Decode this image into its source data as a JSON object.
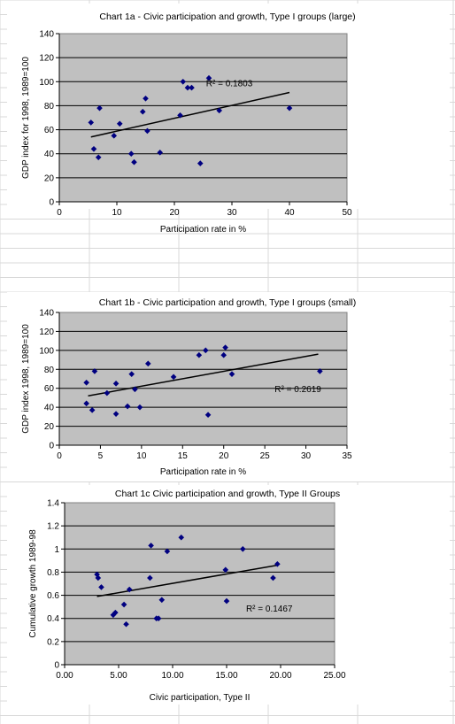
{
  "chart_data": [
    {
      "type": "scatter",
      "title": "Chart 1a - Civic participation and growth, Type I groups (large)",
      "xlabel": "Participation rate in %",
      "ylabel": "GDP index for 1998, 1989=100",
      "xlim": [
        0,
        50
      ],
      "ylim": [
        0,
        140
      ],
      "xticks": [
        0,
        10,
        20,
        30,
        40,
        50
      ],
      "yticks": [
        0,
        20,
        40,
        60,
        80,
        100,
        120,
        140
      ],
      "tick_decimals": 0,
      "grid": "horizontal",
      "plot_bg": "#c0c0c0",
      "marker_color": "#000080",
      "trendline": {
        "x1": 5.5,
        "y1": 54,
        "x2": 40,
        "y2": 91
      },
      "r2_label": "R² = 0.1803",
      "r2_pos": [
        25.5,
        96
      ],
      "points": [
        [
          5.5,
          66
        ],
        [
          6,
          44
        ],
        [
          6.8,
          37
        ],
        [
          7,
          78
        ],
        [
          9.5,
          55
        ],
        [
          10.5,
          65
        ],
        [
          12.5,
          40
        ],
        [
          13,
          33
        ],
        [
          14.5,
          75
        ],
        [
          15,
          86
        ],
        [
          15.3,
          59
        ],
        [
          17.5,
          41
        ],
        [
          21,
          72
        ],
        [
          21.5,
          100
        ],
        [
          22.3,
          95
        ],
        [
          23,
          95
        ],
        [
          24.5,
          32
        ],
        [
          26,
          103
        ],
        [
          27.8,
          76
        ],
        [
          40,
          78
        ]
      ]
    },
    {
      "type": "scatter",
      "title": "Chart 1b - Civic participation and growth, Type I groups (small)",
      "xlabel": "Participation rate in %",
      "ylabel": "GDP index 1998, 1989=100",
      "xlim": [
        0,
        35
      ],
      "ylim": [
        0,
        140
      ],
      "xticks": [
        0,
        5,
        10,
        15,
        20,
        25,
        30,
        35
      ],
      "yticks": [
        0,
        20,
        40,
        60,
        80,
        100,
        120,
        140
      ],
      "tick_decimals": 0,
      "grid": "horizontal",
      "plot_bg": "#c0c0c0",
      "marker_color": "#000080",
      "trendline": {
        "x1": 3.5,
        "y1": 52,
        "x2": 31.5,
        "y2": 96
      },
      "r2_label": "R² = 0.2619",
      "r2_pos": [
        26.2,
        56
      ],
      "points": [
        [
          3.3,
          66
        ],
        [
          3.3,
          44
        ],
        [
          4.0,
          37
        ],
        [
          4.3,
          78
        ],
        [
          5.8,
          55
        ],
        [
          6.9,
          65
        ],
        [
          6.9,
          33
        ],
        [
          8.3,
          41
        ],
        [
          8.8,
          75
        ],
        [
          9.2,
          59
        ],
        [
          9.8,
          40
        ],
        [
          10.8,
          86
        ],
        [
          13.9,
          72
        ],
        [
          17.0,
          95
        ],
        [
          17.8,
          100
        ],
        [
          18.1,
          32
        ],
        [
          20.0,
          95
        ],
        [
          20.2,
          103
        ],
        [
          21.0,
          75
        ],
        [
          31.7,
          78
        ]
      ]
    },
    {
      "type": "scatter",
      "title": "Chart 1c Civic participation and growth, Type II Groups",
      "xlabel": "Civic participation, Type II",
      "ylabel": "Cumulative growth 1989-98",
      "xlim": [
        0,
        25
      ],
      "ylim": [
        0,
        1.4
      ],
      "xticks": [
        0,
        5,
        10,
        15,
        20,
        25
      ],
      "yticks": [
        0,
        0.2,
        0.4,
        0.6,
        0.8,
        1,
        1.2,
        1.4
      ],
      "xtick_labels": [
        "0.00",
        "5.00",
        "10.00",
        "15.00",
        "20.00",
        "25.00"
      ],
      "ytick_labels": [
        "0",
        "0.2",
        "0.4",
        "0.6",
        "0.8",
        "1",
        "1.2",
        "1.4"
      ],
      "grid": "horizontal",
      "plot_bg": "#c0c0c0",
      "marker_color": "#000080",
      "trendline": {
        "x1": 3,
        "y1": 0.59,
        "x2": 19.7,
        "y2": 0.86
      },
      "r2_label": "R² = 0.1467",
      "r2_pos": [
        16.8,
        0.46
      ],
      "points": [
        [
          3.0,
          0.78
        ],
        [
          3.1,
          0.75
        ],
        [
          3.4,
          0.67
        ],
        [
          4.5,
          0.43
        ],
        [
          4.7,
          0.45
        ],
        [
          5.5,
          0.52
        ],
        [
          5.7,
          0.35
        ],
        [
          6.0,
          0.65
        ],
        [
          7.9,
          0.75
        ],
        [
          8.0,
          1.03
        ],
        [
          8.5,
          0.4
        ],
        [
          8.7,
          0.4
        ],
        [
          9.0,
          0.56
        ],
        [
          9.5,
          0.98
        ],
        [
          10.8,
          1.1
        ],
        [
          14.9,
          0.82
        ],
        [
          15.0,
          0.55
        ],
        [
          16.5,
          1.0
        ],
        [
          19.3,
          0.75
        ],
        [
          19.7,
          0.87
        ]
      ]
    }
  ]
}
